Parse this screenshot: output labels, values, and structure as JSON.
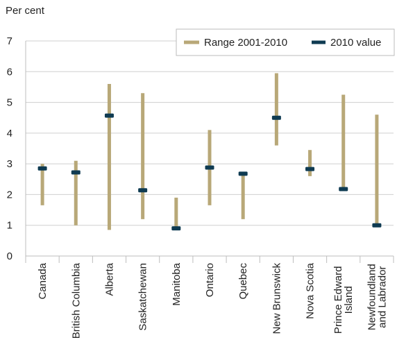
{
  "chart_data": {
    "type": "range",
    "ylabel": "Per cent",
    "ylim": [
      0,
      7
    ],
    "yticks": [
      "0",
      "1",
      "2",
      "3",
      "4",
      "5",
      "6",
      "7"
    ],
    "grid": "horizontal",
    "legend_position": "top-right",
    "categories": [
      "Canada",
      "British Columbia",
      "Alberta",
      "Saskatchewan",
      "Manitoba",
      "Ontario",
      "Quebec",
      "New Brunswick",
      "Nova Scotia",
      "Prince Edward\nIsland",
      "Newfoundland\nand Labrador"
    ],
    "series": [
      {
        "name": "Range 2001-2010",
        "color": "#b8a878",
        "low": [
          1.65,
          1.0,
          0.85,
          1.2,
          0.9,
          1.65,
          1.2,
          3.6,
          2.6,
          2.2,
          1.0
        ],
        "high": [
          3.0,
          3.1,
          5.6,
          5.3,
          1.9,
          4.1,
          2.7,
          5.95,
          3.45,
          5.25,
          4.6
        ]
      },
      {
        "name": "2010 value",
        "color": "#0f3b52",
        "values": [
          2.85,
          2.72,
          4.57,
          2.14,
          0.9,
          2.88,
          2.68,
          4.5,
          2.83,
          2.18,
          1.0
        ]
      }
    ]
  }
}
